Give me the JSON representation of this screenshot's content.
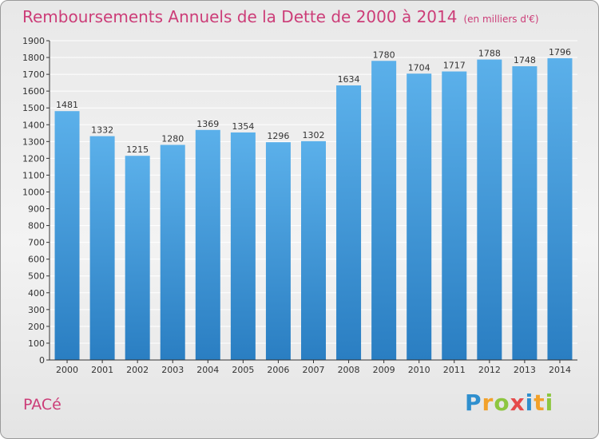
{
  "title": "Remboursements Annuels de la Dette de 2000 à 2014",
  "unit_note": "(en milliers d'€)",
  "place": "PACé",
  "logo": {
    "letters": [
      "P",
      "r",
      "o",
      "x",
      "i",
      "t",
      "i"
    ],
    "colors": [
      "#2f8fce",
      "#f2a12a",
      "#8dc63f",
      "#e54b4b",
      "#2f8fce",
      "#f2a12a",
      "#8dc63f"
    ]
  },
  "colors": {
    "title": "#cc3d78",
    "bar_top": "#5bb0ea",
    "bar_bottom": "#2a7ec2",
    "grid": "#ffffff",
    "axis": "#333333"
  },
  "chart_data": {
    "type": "bar",
    "categories": [
      "2000",
      "2001",
      "2002",
      "2003",
      "2004",
      "2005",
      "2006",
      "2007",
      "2008",
      "2009",
      "2010",
      "2011",
      "2012",
      "2013",
      "2014"
    ],
    "values": [
      1481,
      1332,
      1215,
      1280,
      1369,
      1354,
      1296,
      1302,
      1634,
      1780,
      1704,
      1717,
      1788,
      1748,
      1796
    ],
    "ylim": [
      0,
      1900
    ],
    "yticks": [
      0,
      100,
      200,
      300,
      400,
      500,
      600,
      700,
      800,
      900,
      1000,
      1100,
      1200,
      1300,
      1400,
      1500,
      1600,
      1700,
      1800,
      1900
    ],
    "grid": true,
    "data_labels": true
  }
}
